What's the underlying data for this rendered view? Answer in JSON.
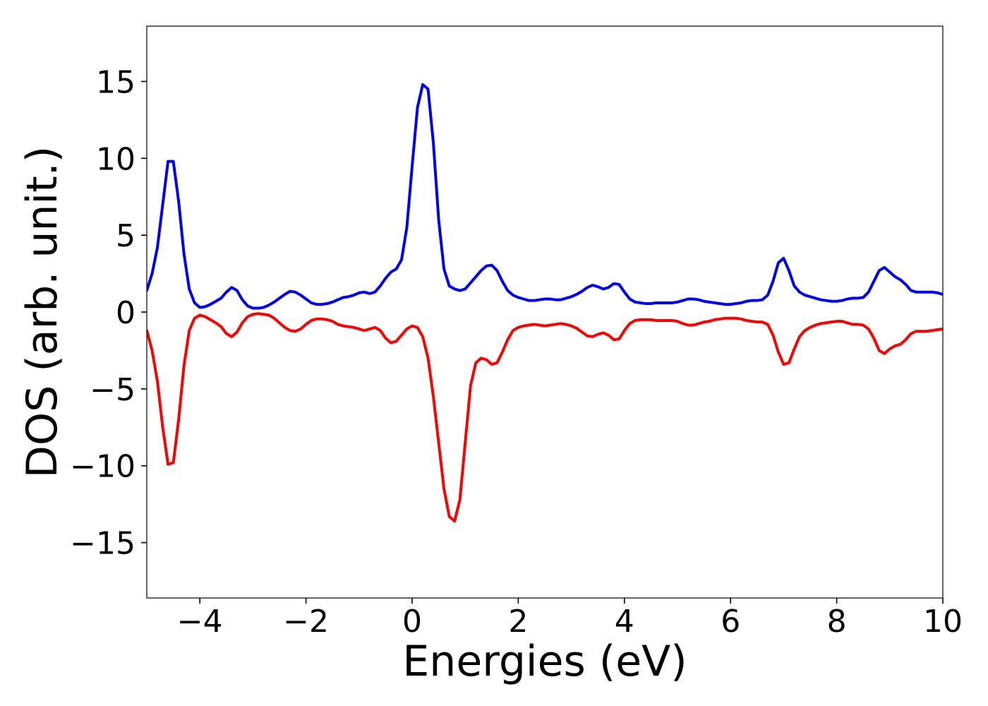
{
  "chart_data": {
    "type": "line",
    "xlabel": "Energies (eV)",
    "ylabel": "DOS (arb. unit.)",
    "xlim": [
      -5,
      10
    ],
    "ylim": [
      -18.6,
      18.6
    ],
    "xticks": [
      {
        "value": -4,
        "label": "−4"
      },
      {
        "value": -2,
        "label": "−2"
      },
      0,
      2,
      4,
      6,
      8,
      10
    ],
    "yticks": [
      {
        "value": -15,
        "label": "−15"
      },
      {
        "value": -10,
        "label": "−10"
      },
      {
        "value": -5,
        "label": "−5"
      },
      0,
      5,
      10,
      15
    ],
    "grid": false,
    "x": [
      -5.0,
      -4.9,
      -4.8,
      -4.7,
      -4.6,
      -4.5,
      -4.4,
      -4.3,
      -4.2,
      -4.1,
      -4.0,
      -3.9,
      -3.8,
      -3.7,
      -3.6,
      -3.5,
      -3.4,
      -3.3,
      -3.2,
      -3.1,
      -3.0,
      -2.9,
      -2.8,
      -2.7,
      -2.6,
      -2.5,
      -2.4,
      -2.3,
      -2.2,
      -2.1,
      -2.0,
      -1.9,
      -1.8,
      -1.7,
      -1.6,
      -1.5,
      -1.4,
      -1.3,
      -1.2,
      -1.1,
      -1.0,
      -0.9,
      -0.8,
      -0.7,
      -0.6,
      -0.5,
      -0.4,
      -0.3,
      -0.2,
      -0.1,
      0.0,
      0.1,
      0.2,
      0.3,
      0.4,
      0.5,
      0.6,
      0.7,
      0.8,
      0.9,
      1.0,
      1.1,
      1.2,
      1.3,
      1.4,
      1.5,
      1.6,
      1.7,
      1.8,
      1.9,
      2.0,
      2.1,
      2.2,
      2.3,
      2.4,
      2.5,
      2.6,
      2.7,
      2.8,
      2.9,
      3.0,
      3.1,
      3.2,
      3.3,
      3.4,
      3.5,
      3.6,
      3.7,
      3.8,
      3.9,
      4.0,
      4.1,
      4.2,
      4.3,
      4.4,
      4.5,
      4.6,
      4.7,
      4.8,
      4.9,
      5.0,
      5.1,
      5.2,
      5.3,
      5.4,
      5.5,
      5.6,
      5.7,
      5.8,
      5.9,
      6.0,
      6.1,
      6.2,
      6.3,
      6.4,
      6.5,
      6.6,
      6.7,
      6.8,
      6.9,
      7.0,
      7.1,
      7.2,
      7.3,
      7.4,
      7.5,
      7.6,
      7.7,
      7.8,
      7.9,
      8.0,
      8.1,
      8.2,
      8.3,
      8.4,
      8.5,
      8.6,
      8.7,
      8.8,
      8.9,
      9.0,
      9.1,
      9.2,
      9.3,
      9.4,
      9.5,
      9.6,
      9.7,
      9.8,
      9.9,
      10.0
    ],
    "series": [
      {
        "color": "#0000ff",
        "values": [
          1.4,
          2.5,
          4.2,
          7.0,
          9.8,
          9.8,
          7.2,
          3.8,
          1.5,
          0.6,
          0.3,
          0.35,
          0.5,
          0.7,
          0.9,
          1.3,
          1.6,
          1.4,
          0.8,
          0.4,
          0.25,
          0.25,
          0.3,
          0.45,
          0.65,
          0.9,
          1.15,
          1.35,
          1.3,
          1.1,
          0.85,
          0.6,
          0.5,
          0.5,
          0.55,
          0.65,
          0.8,
          0.95,
          1.0,
          1.1,
          1.25,
          1.3,
          1.2,
          1.3,
          1.7,
          2.2,
          2.6,
          2.8,
          3.4,
          5.5,
          9.5,
          13.3,
          14.8,
          14.5,
          11.0,
          6.0,
          2.8,
          1.7,
          1.5,
          1.4,
          1.5,
          1.9,
          2.3,
          2.7,
          3.0,
          3.05,
          2.7,
          2.0,
          1.4,
          1.1,
          0.95,
          0.85,
          0.75,
          0.75,
          0.8,
          0.85,
          0.85,
          0.8,
          0.8,
          0.9,
          1.0,
          1.15,
          1.35,
          1.6,
          1.75,
          1.65,
          1.5,
          1.6,
          1.85,
          1.8,
          1.3,
          0.85,
          0.65,
          0.6,
          0.55,
          0.55,
          0.6,
          0.6,
          0.6,
          0.6,
          0.65,
          0.75,
          0.85,
          0.85,
          0.8,
          0.7,
          0.65,
          0.6,
          0.55,
          0.5,
          0.5,
          0.55,
          0.6,
          0.7,
          0.75,
          0.75,
          0.8,
          1.1,
          2.0,
          3.2,
          3.5,
          2.7,
          1.7,
          1.3,
          1.1,
          1.0,
          0.9,
          0.8,
          0.75,
          0.7,
          0.7,
          0.75,
          0.85,
          0.9,
          0.9,
          0.95,
          1.3,
          2.0,
          2.7,
          2.9,
          2.6,
          2.3,
          2.1,
          1.8,
          1.4,
          1.3,
          1.3,
          1.3,
          1.3,
          1.25,
          1.15
        ]
      },
      {
        "color": "#ff0000",
        "values": [
          -1.2,
          -2.5,
          -4.5,
          -7.5,
          -9.9,
          -9.8,
          -7.0,
          -3.5,
          -1.2,
          -0.4,
          -0.2,
          -0.3,
          -0.5,
          -0.7,
          -0.95,
          -1.4,
          -1.6,
          -1.3,
          -0.7,
          -0.3,
          -0.15,
          -0.1,
          -0.15,
          -0.2,
          -0.4,
          -0.7,
          -1.0,
          -1.2,
          -1.25,
          -1.1,
          -0.8,
          -0.55,
          -0.45,
          -0.45,
          -0.5,
          -0.6,
          -0.8,
          -0.9,
          -0.95,
          -1.0,
          -1.1,
          -1.2,
          -1.1,
          -1.0,
          -1.2,
          -1.7,
          -2.0,
          -1.9,
          -1.5,
          -1.1,
          -0.9,
          -1.0,
          -1.6,
          -3.0,
          -5.5,
          -8.5,
          -11.5,
          -13.3,
          -13.6,
          -12.2,
          -8.5,
          -4.8,
          -3.3,
          -3.0,
          -3.1,
          -3.4,
          -3.3,
          -2.6,
          -1.8,
          -1.2,
          -1.0,
          -0.9,
          -0.85,
          -0.8,
          -0.85,
          -0.9,
          -0.85,
          -0.8,
          -0.75,
          -0.8,
          -0.9,
          -1.05,
          -1.3,
          -1.55,
          -1.6,
          -1.45,
          -1.35,
          -1.5,
          -1.8,
          -1.75,
          -1.2,
          -0.75,
          -0.55,
          -0.5,
          -0.5,
          -0.5,
          -0.55,
          -0.55,
          -0.55,
          -0.55,
          -0.6,
          -0.75,
          -0.85,
          -0.85,
          -0.75,
          -0.65,
          -0.6,
          -0.5,
          -0.45,
          -0.4,
          -0.4,
          -0.4,
          -0.45,
          -0.55,
          -0.6,
          -0.65,
          -0.65,
          -0.8,
          -1.5,
          -2.6,
          -3.4,
          -3.3,
          -2.4,
          -1.6,
          -1.2,
          -1.0,
          -0.85,
          -0.75,
          -0.7,
          -0.65,
          -0.6,
          -0.6,
          -0.7,
          -0.8,
          -0.8,
          -0.85,
          -1.1,
          -1.7,
          -2.5,
          -2.7,
          -2.4,
          -2.2,
          -2.1,
          -1.8,
          -1.4,
          -1.25,
          -1.25,
          -1.25,
          -1.2,
          -1.15,
          -1.1
        ]
      }
    ]
  }
}
